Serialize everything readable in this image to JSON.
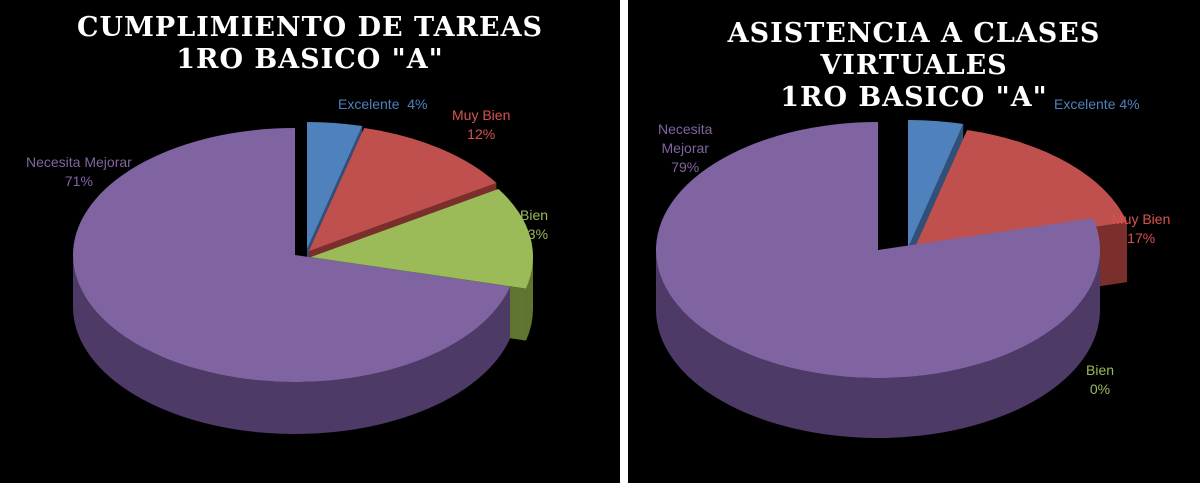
{
  "chart_data": [
    {
      "type": "pie",
      "title_lines": [
        "CUMPLIMIENTO DE TAREAS",
        "1RO BASICO \"A\""
      ],
      "slices": [
        {
          "name": "Excelente",
          "value": 4,
          "label": "4%",
          "color": "#4f81bd",
          "side_color": "#30507a"
        },
        {
          "name": "Muy Bien",
          "value": 12,
          "label": "12%",
          "color": "#c0504d",
          "side_color": "#7a2f2d"
        },
        {
          "name": "Bien",
          "value": 13,
          "label": "13%",
          "color": "#9bbb59",
          "side_color": "#5f7530"
        },
        {
          "name": "Necesita Mejorar",
          "value": 71,
          "label": "71%",
          "color": "#8064a2",
          "side_color": "#4d3a66"
        }
      ]
    },
    {
      "type": "pie",
      "title_lines": [
        "ASISTENCIA A CLASES",
        "VIRTUALES",
        "1RO BASICO \"A\""
      ],
      "slices": [
        {
          "name": "Excelente",
          "value": 4,
          "label": "4%",
          "color": "#4f81bd",
          "side_color": "#30507a"
        },
        {
          "name": "Muy Bien",
          "value": 17,
          "label": "17%",
          "color": "#c0504d",
          "side_color": "#7a2f2d"
        },
        {
          "name": "Bien",
          "value": 0,
          "label": "0%",
          "color": "#9bbb59",
          "side_color": "#5f7530"
        },
        {
          "name": "Necesita Mejorar",
          "value": 79,
          "label": "79%",
          "color": "#8064a2",
          "side_color": "#4d3a66"
        }
      ]
    }
  ]
}
